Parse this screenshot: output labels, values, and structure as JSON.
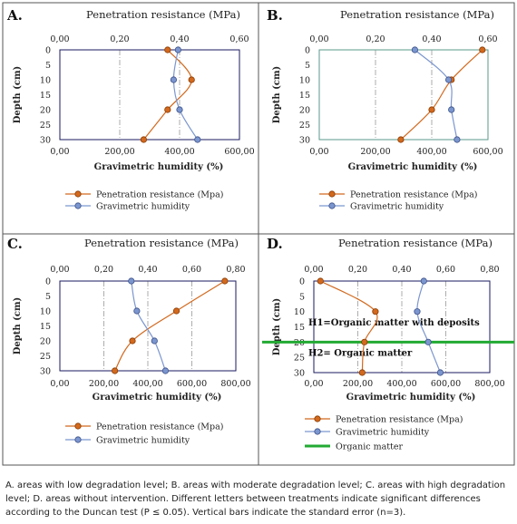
{
  "chart_data": [
    {
      "type": "line",
      "panel_label": "A.",
      "top_axis_title": "Penetration resistance (MPa)",
      "top_axis": {
        "min": 0,
        "max": 0.6,
        "ticks": [
          "0,00",
          "0,20",
          "0,40",
          "0,60"
        ]
      },
      "bottom_axis_title": "Gravimetric humidity (%)",
      "bottom_axis": {
        "min": 0,
        "max": 600,
        "ticks": [
          "0,00",
          "200,00",
          "400,00",
          "600,00"
        ]
      },
      "ylabel": "Depth (cm)",
      "y_axis": {
        "min": 0,
        "max": 30,
        "ticks": [
          "0",
          "5",
          "10",
          "15",
          "20",
          "25",
          "30"
        ]
      },
      "grid": "dashed vertical",
      "legend_position": "below",
      "series": [
        {
          "name": "Penetration resistance (Mpa)",
          "axis": "top",
          "color": "#d2691e",
          "x": [
            0.36,
            0.44,
            0.36,
            0.28
          ],
          "y": [
            0,
            10,
            20,
            30
          ]
        },
        {
          "name": "Gravimetric humidity",
          "axis": "bottom",
          "color": "#7b96cf",
          "x": [
            395,
            380,
            400,
            460
          ],
          "y": [
            0,
            10,
            20,
            30
          ]
        }
      ]
    },
    {
      "type": "line",
      "panel_label": "B.",
      "top_axis_title": "Penetration resistance (MPa)",
      "top_axis": {
        "min": 0,
        "max": 0.6,
        "ticks": [
          "0,00",
          "0,20",
          "0,40",
          "0,60"
        ]
      },
      "bottom_axis_title": "Gravimetric humidity (%)",
      "bottom_axis": {
        "min": 0,
        "max": 600,
        "ticks": [
          "0,00",
          "200,00",
          "400,00",
          "600,00"
        ]
      },
      "ylabel": "Depth (cm)",
      "y_axis": {
        "min": 0,
        "max": 30,
        "ticks": [
          "0",
          "5",
          "10",
          "15",
          "20",
          "25",
          "30"
        ]
      },
      "grid": "dashed vertical",
      "legend_position": "below",
      "series": [
        {
          "name": "Penetration resistance (Mpa)",
          "axis": "top",
          "color": "#d2691e",
          "x": [
            0.58,
            0.47,
            0.4,
            0.29
          ],
          "y": [
            0,
            10,
            20,
            30
          ]
        },
        {
          "name": "Gravimetric humidity",
          "axis": "bottom",
          "color": "#7b96cf",
          "x": [
            340,
            460,
            470,
            490
          ],
          "y": [
            0,
            10,
            20,
            30
          ]
        }
      ]
    },
    {
      "type": "line",
      "panel_label": "C.",
      "top_axis_title": "Penetration resistance (MPa)",
      "top_axis": {
        "min": 0,
        "max": 0.8,
        "ticks": [
          "0,00",
          "0,20",
          "0,40",
          "0,60",
          "0,80"
        ]
      },
      "bottom_axis_title": "Gravimetric humidity (%)",
      "bottom_axis": {
        "min": 0,
        "max": 800,
        "ticks": [
          "0,00",
          "200,00",
          "400,00",
          "600,00",
          "800,00"
        ]
      },
      "ylabel": "Depth (cm)",
      "y_axis": {
        "min": 0,
        "max": 30,
        "ticks": [
          "0",
          "5",
          "10",
          "15",
          "20",
          "25",
          "30"
        ]
      },
      "grid": "dashed vertical",
      "legend_position": "below",
      "series": [
        {
          "name": "Penetration resistance (Mpa)",
          "axis": "top",
          "color": "#d2691e",
          "x": [
            0.75,
            0.53,
            0.33,
            0.25
          ],
          "y": [
            0,
            10,
            20,
            30
          ]
        },
        {
          "name": "Gravimetric humidity",
          "axis": "bottom",
          "color": "#7b96cf",
          "x": [
            325,
            350,
            430,
            480
          ],
          "y": [
            0,
            10,
            20,
            30
          ]
        }
      ]
    },
    {
      "type": "line",
      "panel_label": "D.",
      "top_axis_title": "Penetration resistance (MPa)",
      "top_axis": {
        "min": 0,
        "max": 0.8,
        "ticks": [
          "0,00",
          "0,20",
          "0,40",
          "0,60",
          "0,80"
        ]
      },
      "bottom_axis_title": "Gravimetric humidity (%)",
      "bottom_axis": {
        "min": 0,
        "max": 800,
        "ticks": [
          "0,00",
          "200,00",
          "400,00",
          "600,00",
          "800,00"
        ]
      },
      "ylabel": "Depth (cm)",
      "y_axis": {
        "min": 0,
        "max": 30,
        "ticks": [
          "0",
          "5",
          "10",
          "15",
          "20",
          "25",
          "30"
        ]
      },
      "grid": "dashed vertical",
      "legend_position": "below",
      "annotations": [
        "H1=Organic matter with deposits",
        "H2= Organic matter"
      ],
      "reference_line": {
        "name": "Organic matter",
        "depth": 20,
        "color": "#22aa33"
      },
      "series": [
        {
          "name": "Penetration resistance (Mpa)",
          "axis": "top",
          "color": "#d2691e",
          "x": [
            0.03,
            0.28,
            0.23,
            0.22
          ],
          "y": [
            0,
            10,
            20,
            30
          ]
        },
        {
          "name": "Gravimetric humidity",
          "axis": "bottom",
          "color": "#7b96cf",
          "x": [
            500,
            470,
            520,
            575
          ],
          "y": [
            0,
            10,
            20,
            30
          ]
        }
      ]
    }
  ],
  "caption": "A. areas with low degradation level; B. areas with moderate degradation level; C. areas with high degradation level; D. areas without intervention. Different letters between treatments indicate significant differences according to the Duncan test (P ≤ 0.05). Vertical bars indicate the standard error (n=3)."
}
